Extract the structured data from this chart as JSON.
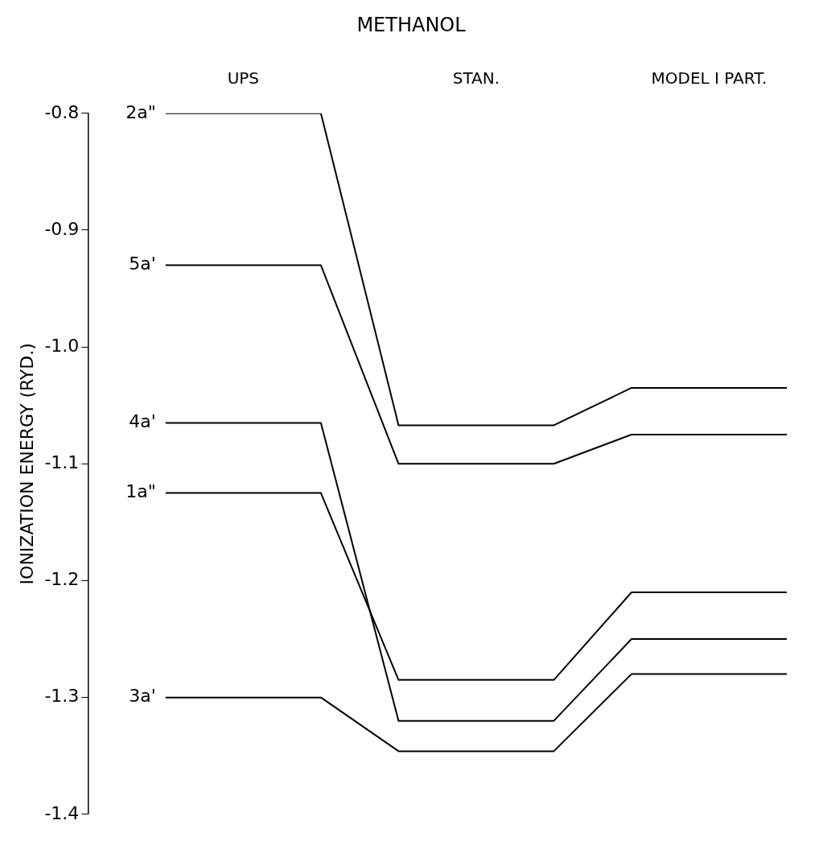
{
  "chart_data": {
    "type": "line",
    "title": "METHANOL",
    "ylabel": "IONIZATION ENERGY (RYD.)",
    "categories": [
      null,
      null,
      "UPS",
      null,
      null,
      "STAN.",
      null,
      null,
      "MODEL I PART.",
      null
    ],
    "ylim": [
      -1.4,
      -0.8
    ],
    "yticks": [
      {
        "value": -0.8,
        "label": "-0.8"
      },
      {
        "value": -0.9,
        "label": "-0.9"
      },
      {
        "value": -1.0,
        "label": "-1.0"
      },
      {
        "value": -1.1,
        "label": "-1.1"
      },
      {
        "value": -1.2,
        "label": "-1.2"
      },
      {
        "value": -1.3,
        "label": "-1.3"
      },
      {
        "value": -1.4,
        "label": "-1.4"
      }
    ],
    "grid": false,
    "legend": false,
    "series": [
      {
        "name": "2a\"",
        "color": "#000000",
        "values": [
          null,
          -0.8,
          -0.8,
          -0.8,
          -1.067,
          -1.067,
          -1.067,
          -1.035,
          -1.035,
          -1.035
        ]
      },
      {
        "name": "5a'",
        "color": "#000000",
        "values": [
          null,
          -0.93,
          -0.93,
          -0.93,
          -1.1,
          -1.1,
          -1.1,
          -1.075,
          -1.075,
          -1.075
        ]
      },
      {
        "name": "4a'",
        "color": "#000000",
        "values": [
          null,
          -1.065,
          -1.065,
          -1.065,
          -1.32,
          -1.32,
          -1.32,
          -1.25,
          -1.25,
          -1.25
        ]
      },
      {
        "name": "1a\"",
        "color": "#000000",
        "values": [
          null,
          -1.125,
          -1.125,
          -1.125,
          -1.285,
          -1.285,
          -1.285,
          -1.21,
          -1.21,
          -1.21
        ]
      },
      {
        "name": "3a'",
        "color": "#000000",
        "values": [
          null,
          -1.3,
          -1.3,
          -1.3,
          -1.346,
          -1.346,
          -1.346,
          -1.28,
          -1.28,
          -1.28
        ]
      }
    ]
  }
}
